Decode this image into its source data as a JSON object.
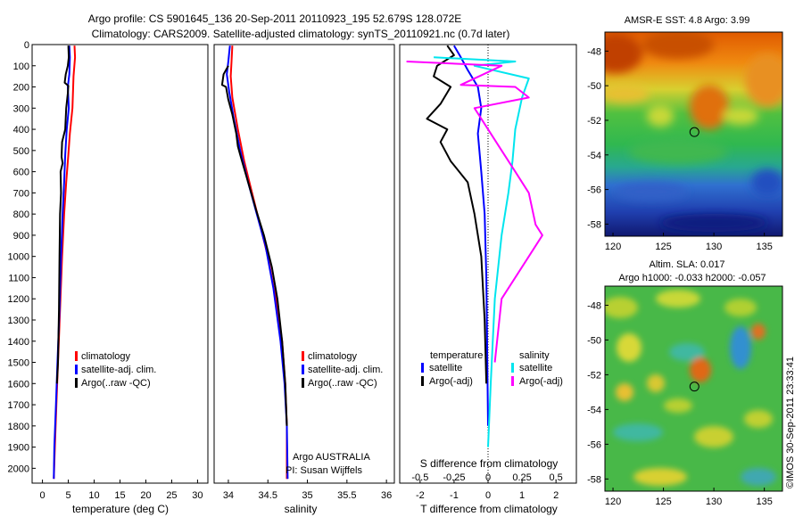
{
  "title_line1": "Argo profile: CS 5901645_136 20-Sep-2011 20110923_195 52.679S 128.072E",
  "title_line2": "Climatology: CARS2009. Satellite-adjusted climatology: synTS_20110921.nc (0.7d later)",
  "credit": "©IMOS 30-Sep-2011 23:33:41",
  "colors": {
    "climatology": "#ff0000",
    "satellite": "#0000ff",
    "argo": "#000000",
    "sat_salinity": "#00e5ee",
    "argo_salinity": "#ff00ff"
  },
  "chart_data": [
    {
      "type": "line",
      "xlabel": "temperature (deg C)",
      "xticks": [
        0,
        5,
        10,
        15,
        20,
        25,
        30
      ],
      "xlim": [
        -2,
        32
      ],
      "ylim": [
        0,
        2070
      ],
      "yticks": [
        0,
        100,
        200,
        300,
        400,
        500,
        600,
        700,
        800,
        900,
        1000,
        1100,
        1200,
        1300,
        1400,
        1500,
        1600,
        1700,
        1800,
        1900,
        2000
      ],
      "legend": [
        "climatology",
        "satellite-adj. clim.",
        "Argo(..raw -QC)"
      ],
      "series": [
        {
          "name": "climatology",
          "color": "#ff0000",
          "points": [
            [
              6.2,
              5
            ],
            [
              6.3,
              60
            ],
            [
              6.0,
              150
            ],
            [
              5.8,
              300
            ],
            [
              5.3,
              420
            ],
            [
              5.0,
              520
            ],
            [
              4.6,
              650
            ],
            [
              4.2,
              800
            ],
            [
              3.8,
              1000
            ],
            [
              3.4,
              1250
            ],
            [
              3.0,
              1500
            ],
            [
              2.7,
              1700
            ],
            [
              2.4,
              1900
            ],
            [
              2.2,
              2050
            ]
          ]
        },
        {
          "name": "satellite-adj. clim.",
          "color": "#0000ff",
          "points": [
            [
              5.2,
              5
            ],
            [
              5.3,
              60
            ],
            [
              5.2,
              140
            ],
            [
              4.9,
              200
            ],
            [
              5.1,
              300
            ],
            [
              4.7,
              400
            ],
            [
              4.4,
              520
            ],
            [
              4.2,
              650
            ],
            [
              3.9,
              800
            ],
            [
              3.6,
              1000
            ],
            [
              3.3,
              1250
            ],
            [
              2.9,
              1500
            ],
            [
              2.6,
              1700
            ],
            [
              2.3,
              1900
            ],
            [
              2.2,
              2050
            ]
          ]
        },
        {
          "name": "Argo(..raw -QC)",
          "color": "#000000",
          "points": [
            [
              5.0,
              5
            ],
            [
              5.1,
              60
            ],
            [
              4.9,
              100
            ],
            [
              4.5,
              140
            ],
            [
              4.3,
              180
            ],
            [
              5.0,
              195
            ],
            [
              4.9,
              230
            ],
            [
              4.6,
              300
            ],
            [
              4.4,
              400
            ],
            [
              3.8,
              460
            ],
            [
              3.7,
              530
            ],
            [
              3.9,
              560
            ],
            [
              3.5,
              600
            ],
            [
              3.6,
              700
            ],
            [
              3.4,
              800
            ],
            [
              3.3,
              1000
            ],
            [
              3.2,
              1250
            ],
            [
              3.0,
              1500
            ],
            [
              2.8,
              1600
            ]
          ]
        }
      ]
    },
    {
      "type": "line",
      "xlabel": "salinity",
      "xticks": [
        34,
        34.5,
        35,
        35.5,
        36
      ],
      "xticklabels": [
        "34",
        "34.5",
        "35",
        "35.5",
        "36"
      ],
      "xlim": [
        33.82,
        36.1
      ],
      "ylim": [
        0,
        2070
      ],
      "legend": [
        "climatology",
        "satellite-adj. clim.",
        "Argo(..raw -QC)"
      ],
      "annotation": [
        "Argo AUSTRALIA",
        "PI: Susan Wijffels"
      ],
      "series": [
        {
          "name": "climatology",
          "color": "#ff0000",
          "points": [
            [
              34.05,
              5
            ],
            [
              34.04,
              80
            ],
            [
              34.03,
              150
            ],
            [
              34.05,
              250
            ],
            [
              34.12,
              400
            ],
            [
              34.2,
              550
            ],
            [
              34.3,
              700
            ],
            [
              34.4,
              850
            ],
            [
              34.5,
              1000
            ],
            [
              34.6,
              1200
            ],
            [
              34.68,
              1400
            ],
            [
              34.72,
              1600
            ],
            [
              34.74,
              1800
            ],
            [
              34.74,
              2050
            ]
          ]
        },
        {
          "name": "satellite-adj. clim.",
          "color": "#0000ff",
          "points": [
            [
              34.02,
              5
            ],
            [
              34.0,
              80
            ],
            [
              33.98,
              140
            ],
            [
              34.01,
              220
            ],
            [
              34.07,
              350
            ],
            [
              34.15,
              500
            ],
            [
              34.25,
              650
            ],
            [
              34.36,
              800
            ],
            [
              34.47,
              950
            ],
            [
              34.57,
              1150
            ],
            [
              34.66,
              1400
            ],
            [
              34.71,
              1600
            ],
            [
              34.74,
              1800
            ],
            [
              34.75,
              2050
            ]
          ]
        },
        {
          "name": "Argo(..raw -QC)",
          "color": "#000000",
          "points": [
            [
              34.0,
              100
            ],
            [
              33.94,
              140
            ],
            [
              33.92,
              190
            ],
            [
              33.97,
              200
            ],
            [
              34.0,
              260
            ],
            [
              34.05,
              330
            ],
            [
              34.1,
              420
            ],
            [
              34.12,
              480
            ],
            [
              34.15,
              520
            ],
            [
              34.18,
              560
            ],
            [
              34.25,
              650
            ],
            [
              34.35,
              780
            ],
            [
              34.45,
              900
            ],
            [
              34.55,
              1050
            ],
            [
              34.62,
              1200
            ],
            [
              34.68,
              1400
            ],
            [
              34.72,
              1600
            ],
            [
              34.74,
              1800
            ]
          ]
        }
      ]
    },
    {
      "type": "line",
      "xlabel_s": "S difference from climatology",
      "xlabel_t": "T difference from climatology",
      "xticks_t": [
        -2,
        -1,
        0,
        1,
        2
      ],
      "xticks_s": [
        -0.5,
        -0.25,
        0,
        0.25,
        0.5
      ],
      "xticklabels_s": [
        "-0.5",
        "-0.25",
        "0",
        "0.25",
        "0.5"
      ],
      "xlim": [
        -2.6,
        2.6
      ],
      "ylim": [
        0,
        2070
      ],
      "legend_left_title": "temperature",
      "legend_right_title": "salinity",
      "legend_left": [
        "satellite",
        "Argo(-adj)"
      ],
      "legend_right": [
        "satellite",
        "Argo(-adj)"
      ],
      "series": [
        {
          "name": "temperature satellite",
          "color": "#0000ff",
          "points": [
            [
              -1.0,
              5
            ],
            [
              -0.8,
              60
            ],
            [
              -0.6,
              120
            ],
            [
              -0.3,
              200
            ],
            [
              -0.2,
              300
            ],
            [
              -0.3,
              420
            ],
            [
              -0.2,
              600
            ],
            [
              -0.1,
              800
            ],
            [
              -0.05,
              1100
            ],
            [
              -0.02,
              1500
            ],
            [
              0.0,
              1800
            ]
          ]
        },
        {
          "name": "temperature Argo(-adj)",
          "color": "#000000",
          "points": [
            [
              -1.2,
              5
            ],
            [
              -1.0,
              50
            ],
            [
              -1.5,
              100
            ],
            [
              -1.6,
              150
            ],
            [
              -1.1,
              200
            ],
            [
              -1.4,
              280
            ],
            [
              -1.8,
              350
            ],
            [
              -1.2,
              400
            ],
            [
              -1.4,
              460
            ],
            [
              -1.1,
              550
            ],
            [
              -0.6,
              650
            ],
            [
              -0.4,
              800
            ],
            [
              -0.2,
              1000
            ],
            [
              -0.1,
              1300
            ],
            [
              -0.05,
              1600
            ]
          ]
        },
        {
          "name": "salinity satellite",
          "color": "#00e5ee",
          "points": [
            [
              -0.4,
              60
            ],
            [
              0.2,
              80
            ],
            [
              -0.1,
              100
            ],
            [
              0.3,
              160
            ],
            [
              0.25,
              250
            ],
            [
              0.2,
              400
            ],
            [
              0.18,
              550
            ],
            [
              0.15,
              700
            ],
            [
              0.1,
              900
            ],
            [
              0.05,
              1200
            ],
            [
              0.02,
              1600
            ],
            [
              0.0,
              1900
            ]
          ]
        },
        {
          "name": "salinity Argo(-adj)",
          "color": "#ff00ff",
          "points": [
            [
              -0.6,
              80
            ],
            [
              0.1,
              100
            ],
            [
              -0.2,
              190
            ],
            [
              0.2,
              200
            ],
            [
              0.3,
              250
            ],
            [
              -0.1,
              300
            ],
            [
              0.0,
              400
            ],
            [
              0.1,
              500
            ],
            [
              0.2,
              600
            ],
            [
              0.3,
              700
            ],
            [
              0.35,
              850
            ],
            [
              0.4,
              900
            ],
            [
              0.3,
              1000
            ],
            [
              0.1,
              1200
            ],
            [
              0.05,
              1500
            ]
          ]
        }
      ]
    },
    {
      "type": "heatmap",
      "title": "AMSR-E SST: 4.8 Argo: 3.99",
      "xticks": [
        120,
        125,
        130,
        135
      ],
      "yticks": [
        -48,
        -50,
        -52,
        -54,
        -56,
        -58
      ],
      "xlim": [
        119.2,
        136.8
      ],
      "ylim": [
        -58.7,
        -46.9
      ],
      "marker": [
        128.07,
        -52.68
      ]
    },
    {
      "type": "heatmap",
      "title": "Altim. SLA: 0.017",
      "subtitle": "Argo h1000: -0.033 h2000: -0.057",
      "xticks": [
        120,
        125,
        130,
        135
      ],
      "yticks": [
        -48,
        -50,
        -52,
        -54,
        -56,
        -58
      ],
      "xlim": [
        119.2,
        136.8
      ],
      "ylim": [
        -58.7,
        -46.9
      ],
      "marker": [
        128.07,
        -52.68
      ]
    }
  ]
}
